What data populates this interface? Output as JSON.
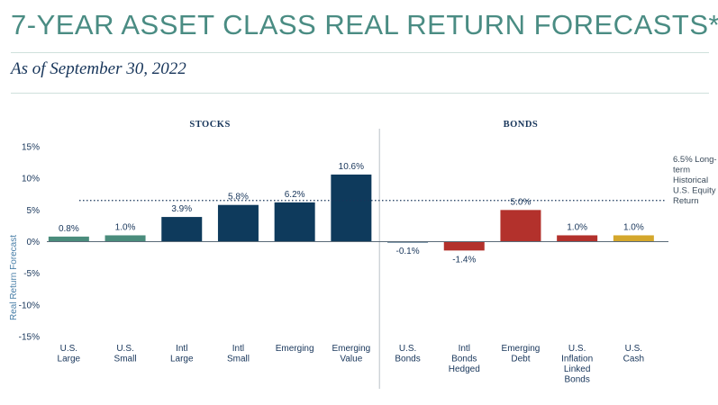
{
  "page": {
    "title": "7-YEAR ASSET CLASS REAL RETURN FORECASTS*",
    "subtitle": "As of September 30, 2022"
  },
  "chart_data": {
    "type": "bar",
    "groups": [
      {
        "label": "STOCKS",
        "categories": [
          0,
          1,
          2,
          3,
          4,
          5
        ]
      },
      {
        "label": "BONDS",
        "categories": [
          6,
          7,
          8,
          9,
          10
        ]
      }
    ],
    "categories": [
      [
        "U.S.",
        "Large"
      ],
      [
        "U.S.",
        "Small"
      ],
      [
        "Intl",
        "Large"
      ],
      [
        "Intl",
        "Small"
      ],
      [
        "Emerging"
      ],
      [
        "Emerging",
        "Value"
      ],
      [
        "U.S.",
        "Bonds"
      ],
      [
        "Intl",
        "Bonds",
        "Hedged"
      ],
      [
        "Emerging",
        "Debt"
      ],
      [
        "U.S.",
        "Inflation",
        "Linked",
        "Bonds"
      ],
      [
        "U.S.",
        "Cash"
      ]
    ],
    "values": [
      0.8,
      1.0,
      3.9,
      5.8,
      6.2,
      10.6,
      -0.1,
      -1.4,
      5.0,
      1.0,
      1.0
    ],
    "value_labels": [
      "0.8%",
      "1.0%",
      "3.9%",
      "5.8%",
      "6.2%",
      "10.6%",
      "-0.1%",
      "-1.4%",
      "5.0%",
      "1.0%",
      "1.0%"
    ],
    "colors": [
      "#4a8c7c",
      "#4a8c7c",
      "#0e3a5c",
      "#0e3a5c",
      "#0e3a5c",
      "#0e3a5c",
      "#0e3a5c",
      "#b3312c",
      "#b3312c",
      "#b3312c",
      "#d4a72c"
    ],
    "ylabel": "Real Return Forecast",
    "ylim": [
      -15,
      15
    ],
    "yticks": [
      15,
      10,
      5,
      0,
      -5,
      -10,
      -15
    ],
    "ytick_labels": [
      "15%",
      "10%",
      "5%",
      "0%",
      "-5%",
      "-10%",
      "-15%"
    ],
    "reference_line": {
      "value": 6.5,
      "label": [
        "6.5% Long-",
        "term",
        "Historical",
        "U.S. Equity",
        "Return"
      ]
    },
    "grid": false,
    "legend": "none"
  }
}
